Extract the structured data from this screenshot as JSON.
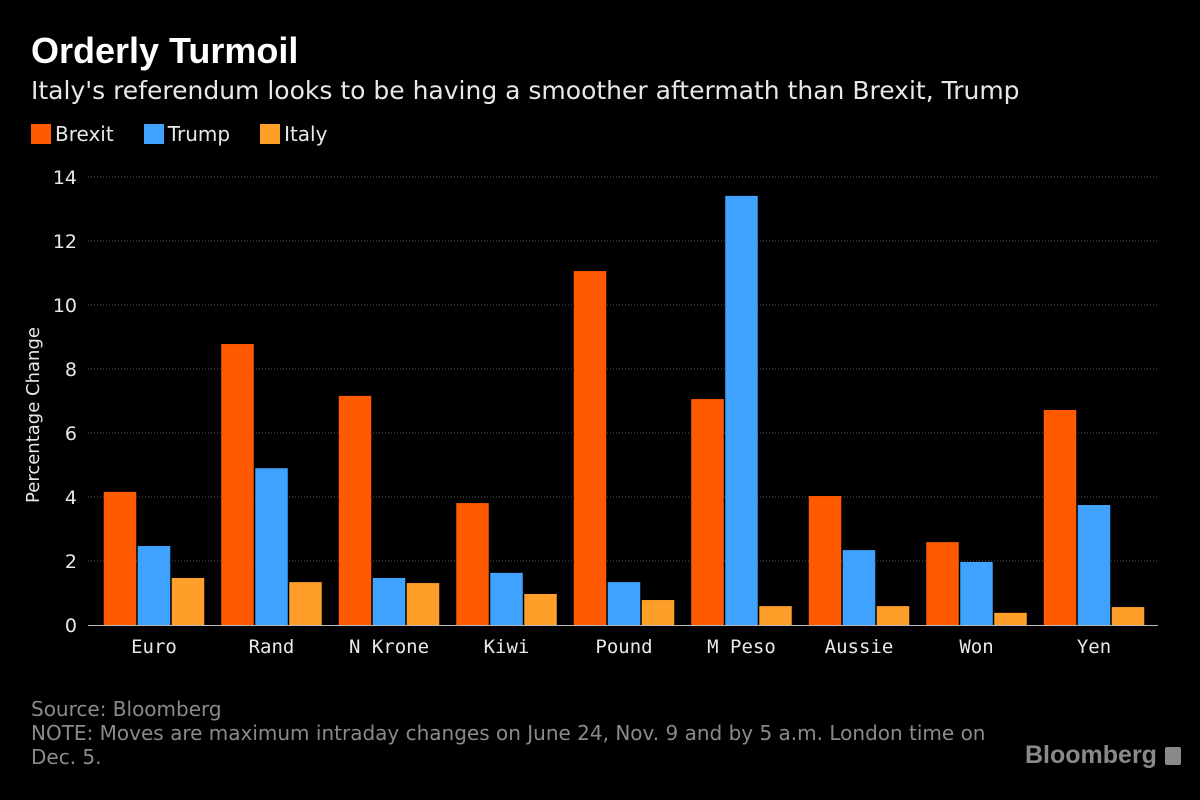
{
  "chart_data": {
    "type": "bar",
    "title": "Orderly Turmoil",
    "subtitle": "Italy's referendum looks to be having a smoother aftermath than Brexit, Trump",
    "xlabel": "",
    "ylabel": "Percentage Change",
    "ylim": [
      0,
      14
    ],
    "yticks": [
      0,
      2,
      4,
      6,
      8,
      10,
      12,
      14
    ],
    "grid": true,
    "legend_placement": "top-left",
    "categories": [
      "Euro",
      "Rand",
      "N Krone",
      "Kiwi",
      "Pound",
      "M Peso",
      "Aussie",
      "Won",
      "Yen"
    ],
    "series": [
      {
        "name": "Brexit",
        "color": "#ff5a00",
        "values": [
          4.16,
          8.78,
          7.16,
          3.81,
          11.06,
          7.06,
          4.03,
          2.59,
          6.72
        ]
      },
      {
        "name": "Trump",
        "color": "#3fa2ff",
        "values": [
          2.47,
          4.9,
          1.47,
          1.63,
          1.34,
          13.41,
          2.34,
          1.97,
          3.75
        ]
      },
      {
        "name": "Italy",
        "color": "#ff9f2a",
        "values": [
          1.47,
          1.34,
          1.31,
          0.97,
          0.78,
          0.59,
          0.59,
          0.38,
          0.56
        ]
      }
    ]
  },
  "footer": {
    "source": "Source: Bloomberg",
    "note": "NOTE: Moves are maximum intraday changes on June 24, Nov. 9 and by 5 a.m. London time on Dec. 5."
  },
  "logo": "Bloomberg"
}
